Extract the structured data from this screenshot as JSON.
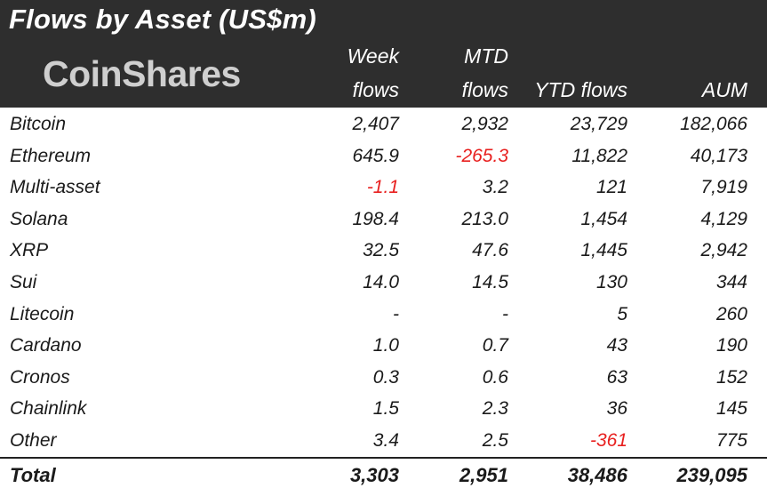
{
  "title": "Flows by Asset (US$m)",
  "logo_text": "CoinShares",
  "headers": {
    "week_line1": "Week",
    "week_line2": "flows",
    "mtd_line1": "MTD",
    "mtd_line2": "flows",
    "ytd": "YTD flows",
    "aum": "AUM"
  },
  "rows": [
    {
      "name": "Bitcoin",
      "week": "2,407",
      "mtd": "2,932",
      "ytd": "23,729",
      "aum": "182,066"
    },
    {
      "name": "Ethereum",
      "week": "645.9",
      "mtd": "-265.3",
      "ytd": "11,822",
      "aum": "40,173"
    },
    {
      "name": "Multi-asset",
      "week": "-1.1",
      "mtd": "3.2",
      "ytd": "121",
      "aum": "7,919"
    },
    {
      "name": "Solana",
      "week": "198.4",
      "mtd": "213.0",
      "ytd": "1,454",
      "aum": "4,129"
    },
    {
      "name": "XRP",
      "week": "32.5",
      "mtd": "47.6",
      "ytd": "1,445",
      "aum": "2,942"
    },
    {
      "name": "Sui",
      "week": "14.0",
      "mtd": "14.5",
      "ytd": "130",
      "aum": "344"
    },
    {
      "name": "Litecoin",
      "week": "-",
      "mtd": "-",
      "ytd": "5",
      "aum": "260"
    },
    {
      "name": "Cardano",
      "week": "1.0",
      "mtd": "0.7",
      "ytd": "43",
      "aum": "190"
    },
    {
      "name": "Cronos",
      "week": "0.3",
      "mtd": "0.6",
      "ytd": "63",
      "aum": "152"
    },
    {
      "name": "Chainlink",
      "week": "1.5",
      "mtd": "2.3",
      "ytd": "36",
      "aum": "145"
    },
    {
      "name": "Other",
      "week": "3.4",
      "mtd": "2.5",
      "ytd": "-361",
      "aum": "775"
    }
  ],
  "total": {
    "name": "Total",
    "week": "3,303",
    "mtd": "2,951",
    "ytd": "38,486",
    "aum": "239,095"
  },
  "colors": {
    "header_bg": "#2e2e2e",
    "negative": "#e8201f"
  }
}
